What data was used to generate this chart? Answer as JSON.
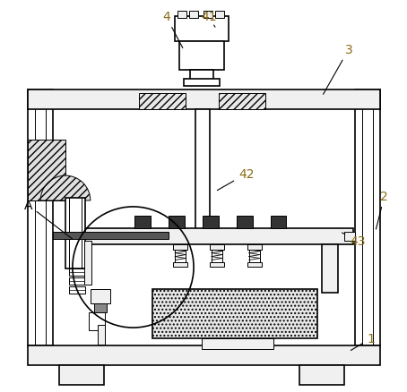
{
  "background_color": "#ffffff",
  "line_color": "#000000",
  "label_fontsize": 10,
  "figsize": [
    4.54,
    4.39
  ],
  "dpi": 100,
  "label_color": "#8B6B14"
}
